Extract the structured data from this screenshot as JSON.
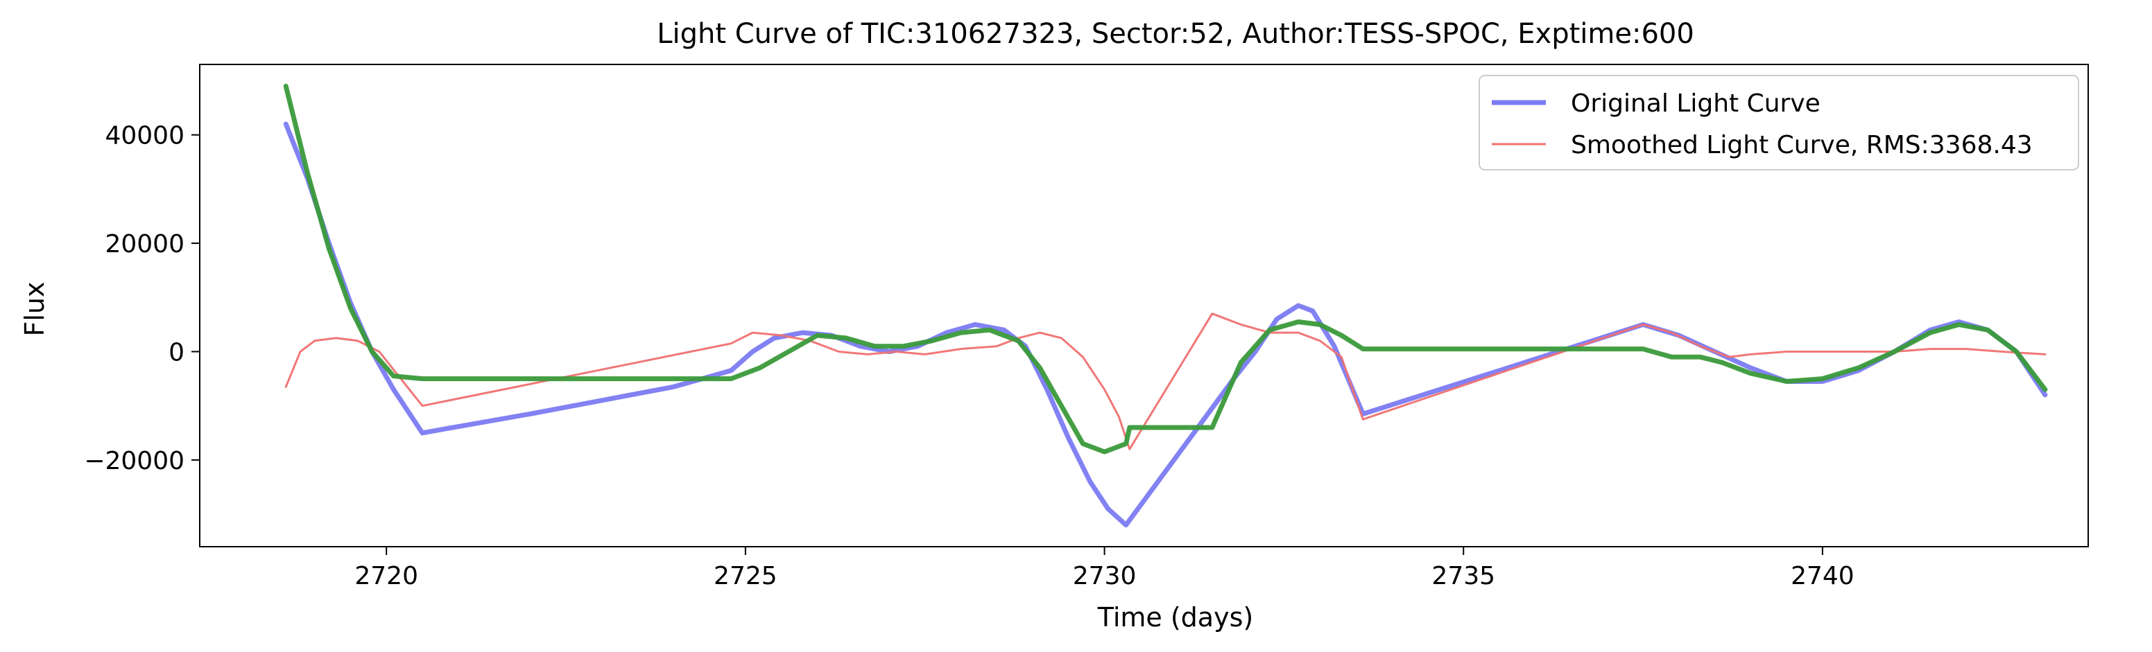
{
  "chart_data": {
    "type": "line",
    "title": "Light Curve of TIC:310627323, Sector:52, Author:TESS-SPOC, Exptime:600",
    "xlabel": "Time (days)",
    "ylabel": "Flux",
    "xlim": [
      2717.4,
      2743.7
    ],
    "ylim": [
      -36000,
      53000
    ],
    "xticks": [
      2720,
      2725,
      2730,
      2735,
      2740
    ],
    "yticks": [
      -20000,
      0,
      20000,
      40000
    ],
    "grid": false,
    "legend_position": "top-right",
    "series": [
      {
        "name": "Original Light Curve",
        "color": "#7b7bf3",
        "points": [
          [
            2718.6,
            42000
          ],
          [
            2718.9,
            32000
          ],
          [
            2719.2,
            20000
          ],
          [
            2719.5,
            9000
          ],
          [
            2719.8,
            0
          ],
          [
            2720.1,
            -7000
          ],
          [
            2720.5,
            -15000
          ],
          [
            2722.0,
            -11500
          ],
          [
            2724.0,
            -6500
          ],
          [
            2724.8,
            -3500
          ],
          [
            2725.1,
            0
          ],
          [
            2725.4,
            2500
          ],
          [
            2725.8,
            3500
          ],
          [
            2726.2,
            3000
          ],
          [
            2726.6,
            1000
          ],
          [
            2727.0,
            0
          ],
          [
            2727.4,
            1000
          ],
          [
            2727.8,
            3500
          ],
          [
            2728.2,
            5000
          ],
          [
            2728.6,
            4000
          ],
          [
            2728.9,
            1000
          ],
          [
            2729.2,
            -7000
          ],
          [
            2729.5,
            -16000
          ],
          [
            2729.8,
            -24000
          ],
          [
            2730.05,
            -29000
          ],
          [
            2730.3,
            -32000
          ],
          [
            2730.8,
            -23000
          ],
          [
            2731.3,
            -14000
          ],
          [
            2731.8,
            -5000
          ],
          [
            2732.1,
            0
          ],
          [
            2732.4,
            6000
          ],
          [
            2732.7,
            8500
          ],
          [
            2732.9,
            7500
          ],
          [
            2733.2,
            1000
          ],
          [
            2733.6,
            -11500
          ],
          [
            2735.5,
            -3500
          ],
          [
            2737.5,
            5000
          ],
          [
            2738.0,
            3000
          ],
          [
            2738.5,
            0
          ],
          [
            2739.0,
            -3000
          ],
          [
            2739.5,
            -5500
          ],
          [
            2740.0,
            -5500
          ],
          [
            2740.5,
            -3500
          ],
          [
            2741.0,
            0
          ],
          [
            2741.5,
            4000
          ],
          [
            2741.9,
            5500
          ],
          [
            2742.3,
            4000
          ],
          [
            2742.7,
            0
          ],
          [
            2743.1,
            -8000
          ]
        ]
      },
      {
        "name": "Smoothed Light Curve, RMS:3368.43",
        "color": "#f07070",
        "points": [
          [
            2718.6,
            -6500
          ],
          [
            2718.8,
            0
          ],
          [
            2719.0,
            2000
          ],
          [
            2719.3,
            2500
          ],
          [
            2719.6,
            2000
          ],
          [
            2719.9,
            0
          ],
          [
            2720.2,
            -5000
          ],
          [
            2720.5,
            -10000
          ],
          [
            2724.8,
            1500
          ],
          [
            2725.1,
            3500
          ],
          [
            2725.5,
            3000
          ],
          [
            2725.9,
            2000
          ],
          [
            2726.3,
            0
          ],
          [
            2726.7,
            -500
          ],
          [
            2727.1,
            0
          ],
          [
            2727.5,
            -500
          ],
          [
            2728.0,
            500
          ],
          [
            2728.5,
            1000
          ],
          [
            2728.8,
            2500
          ],
          [
            2729.1,
            3500
          ],
          [
            2729.4,
            2500
          ],
          [
            2729.7,
            -1000
          ],
          [
            2730.0,
            -7000
          ],
          [
            2730.2,
            -12000
          ],
          [
            2730.35,
            -18000
          ],
          [
            2731.5,
            7000
          ],
          [
            2731.9,
            5000
          ],
          [
            2732.3,
            3500
          ],
          [
            2732.7,
            3500
          ],
          [
            2733.0,
            2000
          ],
          [
            2733.3,
            -1000
          ],
          [
            2733.6,
            -12500
          ],
          [
            2737.5,
            5000
          ],
          [
            2737.9,
            3500
          ],
          [
            2738.3,
            1000
          ],
          [
            2738.7,
            -1000
          ],
          [
            2739.0,
            -500
          ],
          [
            2739.5,
            0
          ],
          [
            2740.0,
            0
          ],
          [
            2740.5,
            0
          ],
          [
            2741.0,
            0
          ],
          [
            2741.5,
            500
          ],
          [
            2742.0,
            500
          ],
          [
            2742.5,
            0
          ],
          [
            2743.1,
            -500
          ]
        ]
      },
      {
        "color": "#3a9a3a",
        "points": [
          [
            2718.6,
            49000
          ],
          [
            2718.9,
            33000
          ],
          [
            2719.2,
            19000
          ],
          [
            2719.5,
            8000
          ],
          [
            2719.8,
            0
          ],
          [
            2720.1,
            -4500
          ],
          [
            2720.5,
            -5000
          ],
          [
            2722.0,
            -5000
          ],
          [
            2724.8,
            -5000
          ],
          [
            2725.2,
            -3000
          ],
          [
            2725.6,
            0
          ],
          [
            2726.0,
            3000
          ],
          [
            2726.4,
            2500
          ],
          [
            2726.8,
            1000
          ],
          [
            2727.2,
            1000
          ],
          [
            2727.6,
            2000
          ],
          [
            2728.0,
            3500
          ],
          [
            2728.4,
            4000
          ],
          [
            2728.8,
            2000
          ],
          [
            2729.1,
            -3000
          ],
          [
            2729.4,
            -10000
          ],
          [
            2729.7,
            -17000
          ],
          [
            2730.0,
            -18500
          ],
          [
            2730.3,
            -17000
          ],
          [
            2730.35,
            -14000
          ],
          [
            2731.5,
            -14000
          ],
          [
            2731.9,
            -2000
          ],
          [
            2732.3,
            4000
          ],
          [
            2732.7,
            5500
          ],
          [
            2733.0,
            5000
          ],
          [
            2733.3,
            3000
          ],
          [
            2733.6,
            500
          ],
          [
            2737.5,
            500
          ],
          [
            2737.9,
            -1000
          ],
          [
            2738.3,
            -1000
          ],
          [
            2738.6,
            -2000
          ],
          [
            2739.0,
            -4000
          ],
          [
            2739.5,
            -5500
          ],
          [
            2740.0,
            -5000
          ],
          [
            2740.5,
            -3000
          ],
          [
            2741.0,
            0
          ],
          [
            2741.5,
            3500
          ],
          [
            2741.9,
            5000
          ],
          [
            2742.3,
            4000
          ],
          [
            2742.7,
            0
          ],
          [
            2743.1,
            -7000
          ]
        ]
      }
    ]
  }
}
